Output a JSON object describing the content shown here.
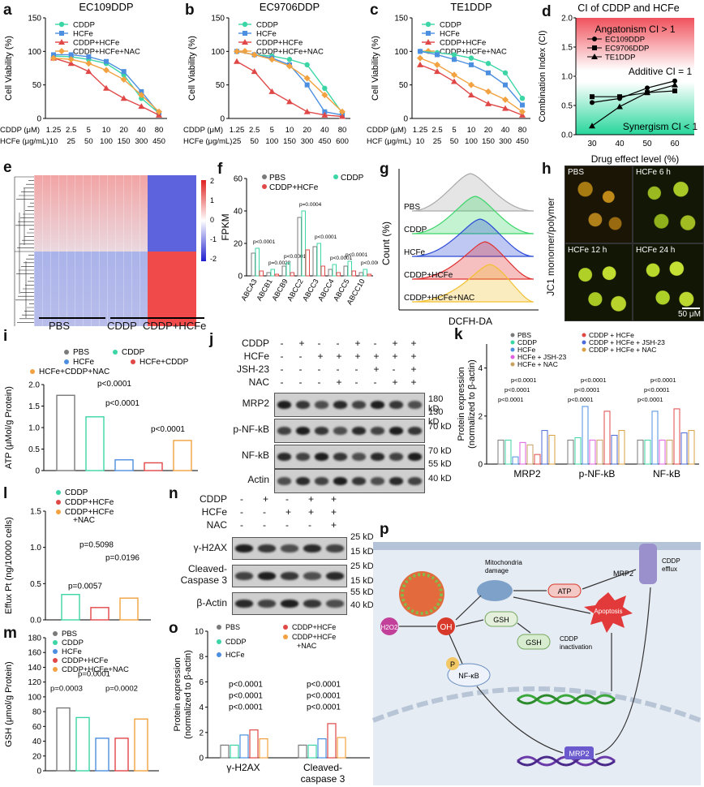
{
  "panels": {
    "a": {
      "label": "a",
      "title": "EC109DDP",
      "ylabel": "Cell Viability (%)",
      "yticks": [
        "0",
        "50",
        "100",
        "150"
      ],
      "legend": [
        "CDDP",
        "HCFe",
        "CDDP+HCFe",
        "CDDP+HCFe+NAC"
      ],
      "x1_name": "CDDP (μM)",
      "x1_ticks": [
        "1.25",
        "2.5",
        "5",
        "10",
        "20",
        "40",
        "80"
      ],
      "x2_name": "HCFe (μg/mL)",
      "x2_ticks": [
        "10",
        "25",
        "50",
        "100",
        "150",
        "300",
        "450"
      ]
    },
    "b": {
      "label": "b",
      "title": "EC9706DDP",
      "ylabel": "Cell Viability (%)",
      "yticks": [
        "0",
        "50",
        "100",
        "150"
      ],
      "legend": [
        "CDDP",
        "HCFe",
        "CDDP+HCFe",
        "CDDP+HCFe+NAC"
      ],
      "x1_name": "CDDP (μM)",
      "x1_ticks": [
        "1.25",
        "2.5",
        "5",
        "10",
        "20",
        "40",
        "80"
      ],
      "x2_name": "HCFe (μg/mL)",
      "x2_ticks": [
        "25",
        "50",
        "100",
        "150",
        "300",
        "450",
        "600"
      ]
    },
    "c": {
      "label": "c",
      "title": "TE1DDP",
      "ylabel": "Cell Viability (%)",
      "yticks": [
        "0",
        "50",
        "100",
        "150"
      ],
      "legend": [
        "CDDP",
        "HCFe",
        "CDDP+HCFe",
        "CDDP+HCFe+NAC"
      ],
      "x1_name": "CDDP (μM)",
      "x1_ticks": [
        "1.25",
        "2.5",
        "5",
        "10",
        "20",
        "40",
        "80"
      ],
      "x2_name": "HCF (μg/mL)",
      "x2_ticks": [
        "10",
        "25",
        "50",
        "100",
        "150",
        "300",
        "450"
      ]
    },
    "d": {
      "label": "d",
      "title": "CI of CDDP and HCFe",
      "ylabel": "Combination Index (CI)",
      "xlabel": "Drug effect level (%)",
      "xticks": [
        "30",
        "40",
        "50",
        "60"
      ],
      "yticks": [
        "0.0",
        "0.5",
        "1.0",
        "1.5",
        "2.0"
      ],
      "antagonism": "Angatonism CI > 1",
      "additive": "Additive CI = 1",
      "synergism": "Synergism CI < 1",
      "legend": [
        "EC109DDP",
        "EC9706DDP",
        "TE1DDP"
      ]
    },
    "e": {
      "label": "e",
      "scale_ticks": [
        "2",
        "1",
        "0",
        "-1",
        "-2"
      ],
      "groups": [
        "PBS",
        "CDDP",
        "CDDP+HCFe"
      ]
    },
    "f": {
      "label": "f",
      "ylabel": "FPKM",
      "yticks": [
        "0",
        "20",
        "40",
        "60"
      ],
      "legend": [
        "PBS",
        "CDDP",
        "CDDP+HCFe"
      ],
      "genes": [
        "ABCA3",
        "ABCB1",
        "ABCB9",
        "ABCC2",
        "ABCC3",
        "ABCC4",
        "ABCC5",
        "ABCC10"
      ],
      "pvals": [
        "p<0.0001",
        "p=0.0028",
        "p<0.0001",
        "p=0.0004",
        "p<0.0001",
        "p<0.0001",
        "p<0.0001",
        "p<0.0001"
      ]
    },
    "g": {
      "label": "g",
      "ylabel": "Count (%)",
      "xlabel": "DCFH-DA",
      "rows": [
        "PBS",
        "CDDP",
        "HCFe",
        "CDDP+HCFe",
        "CDDP+HCFe+NAC"
      ]
    },
    "h": {
      "label": "h",
      "ylabel": "JC1 monomer/polymer",
      "cells": [
        "PBS",
        "HCFe 6 h",
        "HCFe 12 h",
        "HCFe 24 h"
      ],
      "scalebar": "50 μM"
    },
    "i": {
      "label": "i",
      "ylabel": "ATP (μMol/g Protein)",
      "yticks": [
        "0",
        "0.5",
        "1.0",
        "1.5",
        "2.0"
      ],
      "legend": [
        "PBS",
        "CDDP",
        "HCFe",
        "HCFe+CDDP",
        "HCFe+CDDP+NAC"
      ],
      "pvals": [
        "p<0.0001",
        "p<0.0001",
        "p<0.0001"
      ]
    },
    "j": {
      "label": "j",
      "rows": [
        "CDDP",
        "HCFe",
        "JSH-23",
        "NAC"
      ],
      "signs": [
        [
          "-",
          "+",
          "-",
          "-",
          "+",
          "-",
          "+",
          "+"
        ],
        [
          "-",
          "-",
          "+",
          "+",
          "+",
          "+",
          "+",
          "+"
        ],
        [
          "-",
          "-",
          "-",
          "-",
          "-",
          "+",
          "-",
          "+"
        ],
        [
          "-",
          "-",
          "-",
          "+",
          "-",
          "-",
          "+",
          "+"
        ]
      ],
      "proteins": [
        "MRP2",
        "p-NF-kB",
        "NF-kB",
        "Actin"
      ],
      "kd": [
        "180 kD",
        "130 kD",
        "70 kD",
        "70 kD",
        "55 kD",
        "40 kD"
      ]
    },
    "k": {
      "label": "k",
      "ylabel": "Protein expression",
      "ylabel2": "(normalized to β-actin)",
      "yticks": [
        "0",
        "2",
        "4"
      ],
      "legend": [
        "PBS",
        "CDDP",
        "HCFe",
        "HCFe + JSH-23",
        "HCFe + NAC",
        "CDDP + HCFe",
        "CDDP + HCFe + JSH-23",
        "CDDP + HCFe + NAC"
      ],
      "groups": [
        "MRP2",
        "p-NF-kB",
        "NF-kB"
      ],
      "pval": "p<0.0001"
    },
    "l": {
      "label": "l",
      "ylabel": "Effux Pt (ng/10000 cells)",
      "yticks": [
        "0.0",
        "0.5",
        "1.0",
        "1.5"
      ],
      "legend": [
        "CDDP",
        "CDDP+HCFe",
        "CDDP+HCFe",
        "+NAC"
      ],
      "pvals": [
        "p=0.0057",
        "p=0.5098",
        "p=0.0196"
      ]
    },
    "m": {
      "label": "m",
      "ylabel": "GSH (μmol/g Protein)",
      "yticks": [
        "0",
        "20",
        "40",
        "60",
        "80",
        "100",
        "120",
        "140",
        "160",
        "180"
      ],
      "legend": [
        "PBS",
        "CDDP",
        "HCFe",
        "CDDP+HCFe",
        "CDDP+HCFe+NAC"
      ],
      "pvals": [
        "p=0.0003",
        "p=0.0002",
        "p=0.0001"
      ]
    },
    "n": {
      "label": "n",
      "rows": [
        "CDDP",
        "HCFe",
        "NAC"
      ],
      "signs": [
        [
          "-",
          "+",
          "-",
          "+",
          "+"
        ],
        [
          "-",
          "-",
          "+",
          "+",
          "+"
        ],
        [
          "-",
          "-",
          "-",
          "-",
          "+"
        ]
      ],
      "proteins": [
        "γ-H2AX",
        "Cleaved-",
        "Caspase 3",
        "β-Actin"
      ],
      "kd": [
        "25 kD",
        "15 kD",
        "25 kD",
        "15 kD",
        "55 kD",
        "40 kD"
      ]
    },
    "o": {
      "label": "o",
      "ylabel": "Protein expression",
      "ylabel2": "(normalized to β-actin)",
      "yticks": [
        "0",
        "2",
        "4",
        "6",
        "8",
        "10"
      ],
      "legend": [
        "PBS",
        "CDDP",
        "HCFe",
        "CDDP+HCFe",
        "CDDP+HCFe",
        "+NAC"
      ],
      "groups": [
        "γ-H2AX",
        "Cleaved-",
        "caspase 3"
      ],
      "pval": "p<0.0001"
    },
    "p": {
      "label": "p",
      "labels": [
        "Mitochondria",
        "damage",
        "ATP",
        "MRP2",
        "CDDP",
        "efflux",
        "OH",
        "GSH",
        "GSH",
        "CDDP",
        "inactivation",
        "Apoptosis",
        "NF-κB",
        "MRP2",
        "P"
      ],
      "h2o2": "H2O2"
    }
  },
  "chart_data": [
    {
      "type": "line",
      "title": "EC109DDP",
      "ylabel": "Cell Viability (%)",
      "ylim": [
        0,
        150
      ],
      "categories": [
        "1.25",
        "2.5",
        "5",
        "10",
        "20",
        "40",
        "80"
      ],
      "series": [
        {
          "name": "CDDP",
          "values": [
            93,
            92,
            88,
            82,
            65,
            30,
            8
          ]
        },
        {
          "name": "HCFe",
          "values": [
            95,
            95,
            92,
            85,
            70,
            40,
            8
          ]
        },
        {
          "name": "CDDP+HCFe",
          "values": [
            90,
            82,
            70,
            45,
            30,
            18,
            5
          ]
        },
        {
          "name": "CDDP+HCFe+NAC",
          "values": [
            90,
            88,
            82,
            72,
            58,
            35,
            10
          ]
        }
      ]
    },
    {
      "type": "line",
      "title": "EC9706DDP",
      "ylabel": "Cell Viability (%)",
      "ylim": [
        0,
        150
      ],
      "categories": [
        "1.25",
        "2.5",
        "5",
        "10",
        "20",
        "40",
        "80"
      ],
      "series": [
        {
          "name": "CDDP",
          "values": [
            100,
            95,
            93,
            88,
            80,
            45,
            8
          ]
        },
        {
          "name": "HCFe",
          "values": [
            100,
            95,
            90,
            80,
            50,
            10,
            5
          ]
        },
        {
          "name": "CDDP+HCFe",
          "values": [
            85,
            70,
            40,
            25,
            10,
            5,
            3
          ]
        },
        {
          "name": "CDDP+HCFe+NAC",
          "values": [
            100,
            95,
            88,
            78,
            60,
            35,
            10
          ]
        }
      ]
    },
    {
      "type": "line",
      "title": "TE1DDP",
      "ylabel": "Cell Viability (%)",
      "ylim": [
        0,
        150
      ],
      "categories": [
        "1.25",
        "2.5",
        "5",
        "10",
        "20",
        "40",
        "80"
      ],
      "series": [
        {
          "name": "CDDP",
          "values": [
            100,
            98,
            95,
            90,
            82,
            68,
            30
          ]
        },
        {
          "name": "HCFe",
          "values": [
            100,
            95,
            88,
            80,
            68,
            50,
            20
          ]
        },
        {
          "name": "CDDP+HCFe",
          "values": [
            80,
            70,
            55,
            35,
            22,
            15,
            5
          ]
        },
        {
          "name": "CDDP+HCFe+NAC",
          "values": [
            90,
            80,
            65,
            50,
            40,
            28,
            10
          ]
        }
      ]
    },
    {
      "type": "line",
      "title": "CI of CDDP and HCFe",
      "xlabel": "Drug effect level (%)",
      "ylabel": "Combination Index (CI)",
      "ylim": [
        0,
        2
      ],
      "x": [
        30,
        40,
        50,
        60
      ],
      "series": [
        {
          "name": "EC109DDP",
          "values": [
            0.55,
            0.62,
            0.8,
            0.92
          ]
        },
        {
          "name": "EC9706DDP",
          "values": [
            0.65,
            0.65,
            0.72,
            0.75
          ]
        },
        {
          "name": "TE1DDP",
          "values": [
            0.15,
            0.48,
            0.72,
            0.85
          ]
        }
      ]
    }
  ]
}
